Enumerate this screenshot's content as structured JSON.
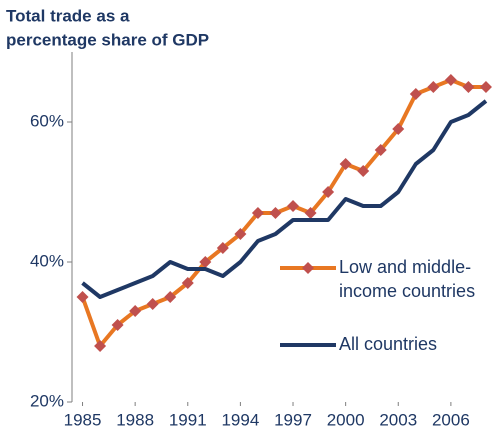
{
  "chart_data": {
    "type": "line",
    "title": [
      "Total trade as a",
      "percentage share of GDP"
    ],
    "x": [
      1985,
      1986,
      1987,
      1988,
      1989,
      1990,
      1991,
      1992,
      1993,
      1994,
      1995,
      1996,
      1997,
      1998,
      1999,
      2000,
      2001,
      2002,
      2003,
      2004,
      2005,
      2006,
      2007,
      2008
    ],
    "series": [
      {
        "name": [
          "Low and middle-",
          "income countries"
        ],
        "color": "#e87722",
        "marker_color": "#c0504d",
        "marker": "diamond",
        "values": [
          35,
          28,
          31,
          33,
          34,
          35,
          37,
          40,
          42,
          44,
          47,
          47,
          48,
          47,
          50,
          54,
          53,
          56,
          59,
          64,
          65,
          66,
          65,
          65
        ]
      },
      {
        "name": [
          "All countries"
        ],
        "color": "#1f3864",
        "values": [
          37,
          35,
          36,
          37,
          38,
          40,
          39,
          39,
          38,
          40,
          43,
          44,
          46,
          46,
          46,
          49,
          48,
          48,
          50,
          54,
          56,
          60,
          61,
          63
        ]
      }
    ],
    "xlim": [
      1984.4,
      2008.8
    ],
    "xticks": [
      1985,
      1988,
      1991,
      1994,
      1997,
      2000,
      2003,
      2006
    ],
    "ylim": [
      20,
      70
    ],
    "yticks": [
      {
        "value": 20,
        "label": "20%"
      },
      {
        "value": 40,
        "label": "40%"
      },
      {
        "value": 60,
        "label": "60%"
      }
    ],
    "grid": false,
    "legend": "right"
  }
}
